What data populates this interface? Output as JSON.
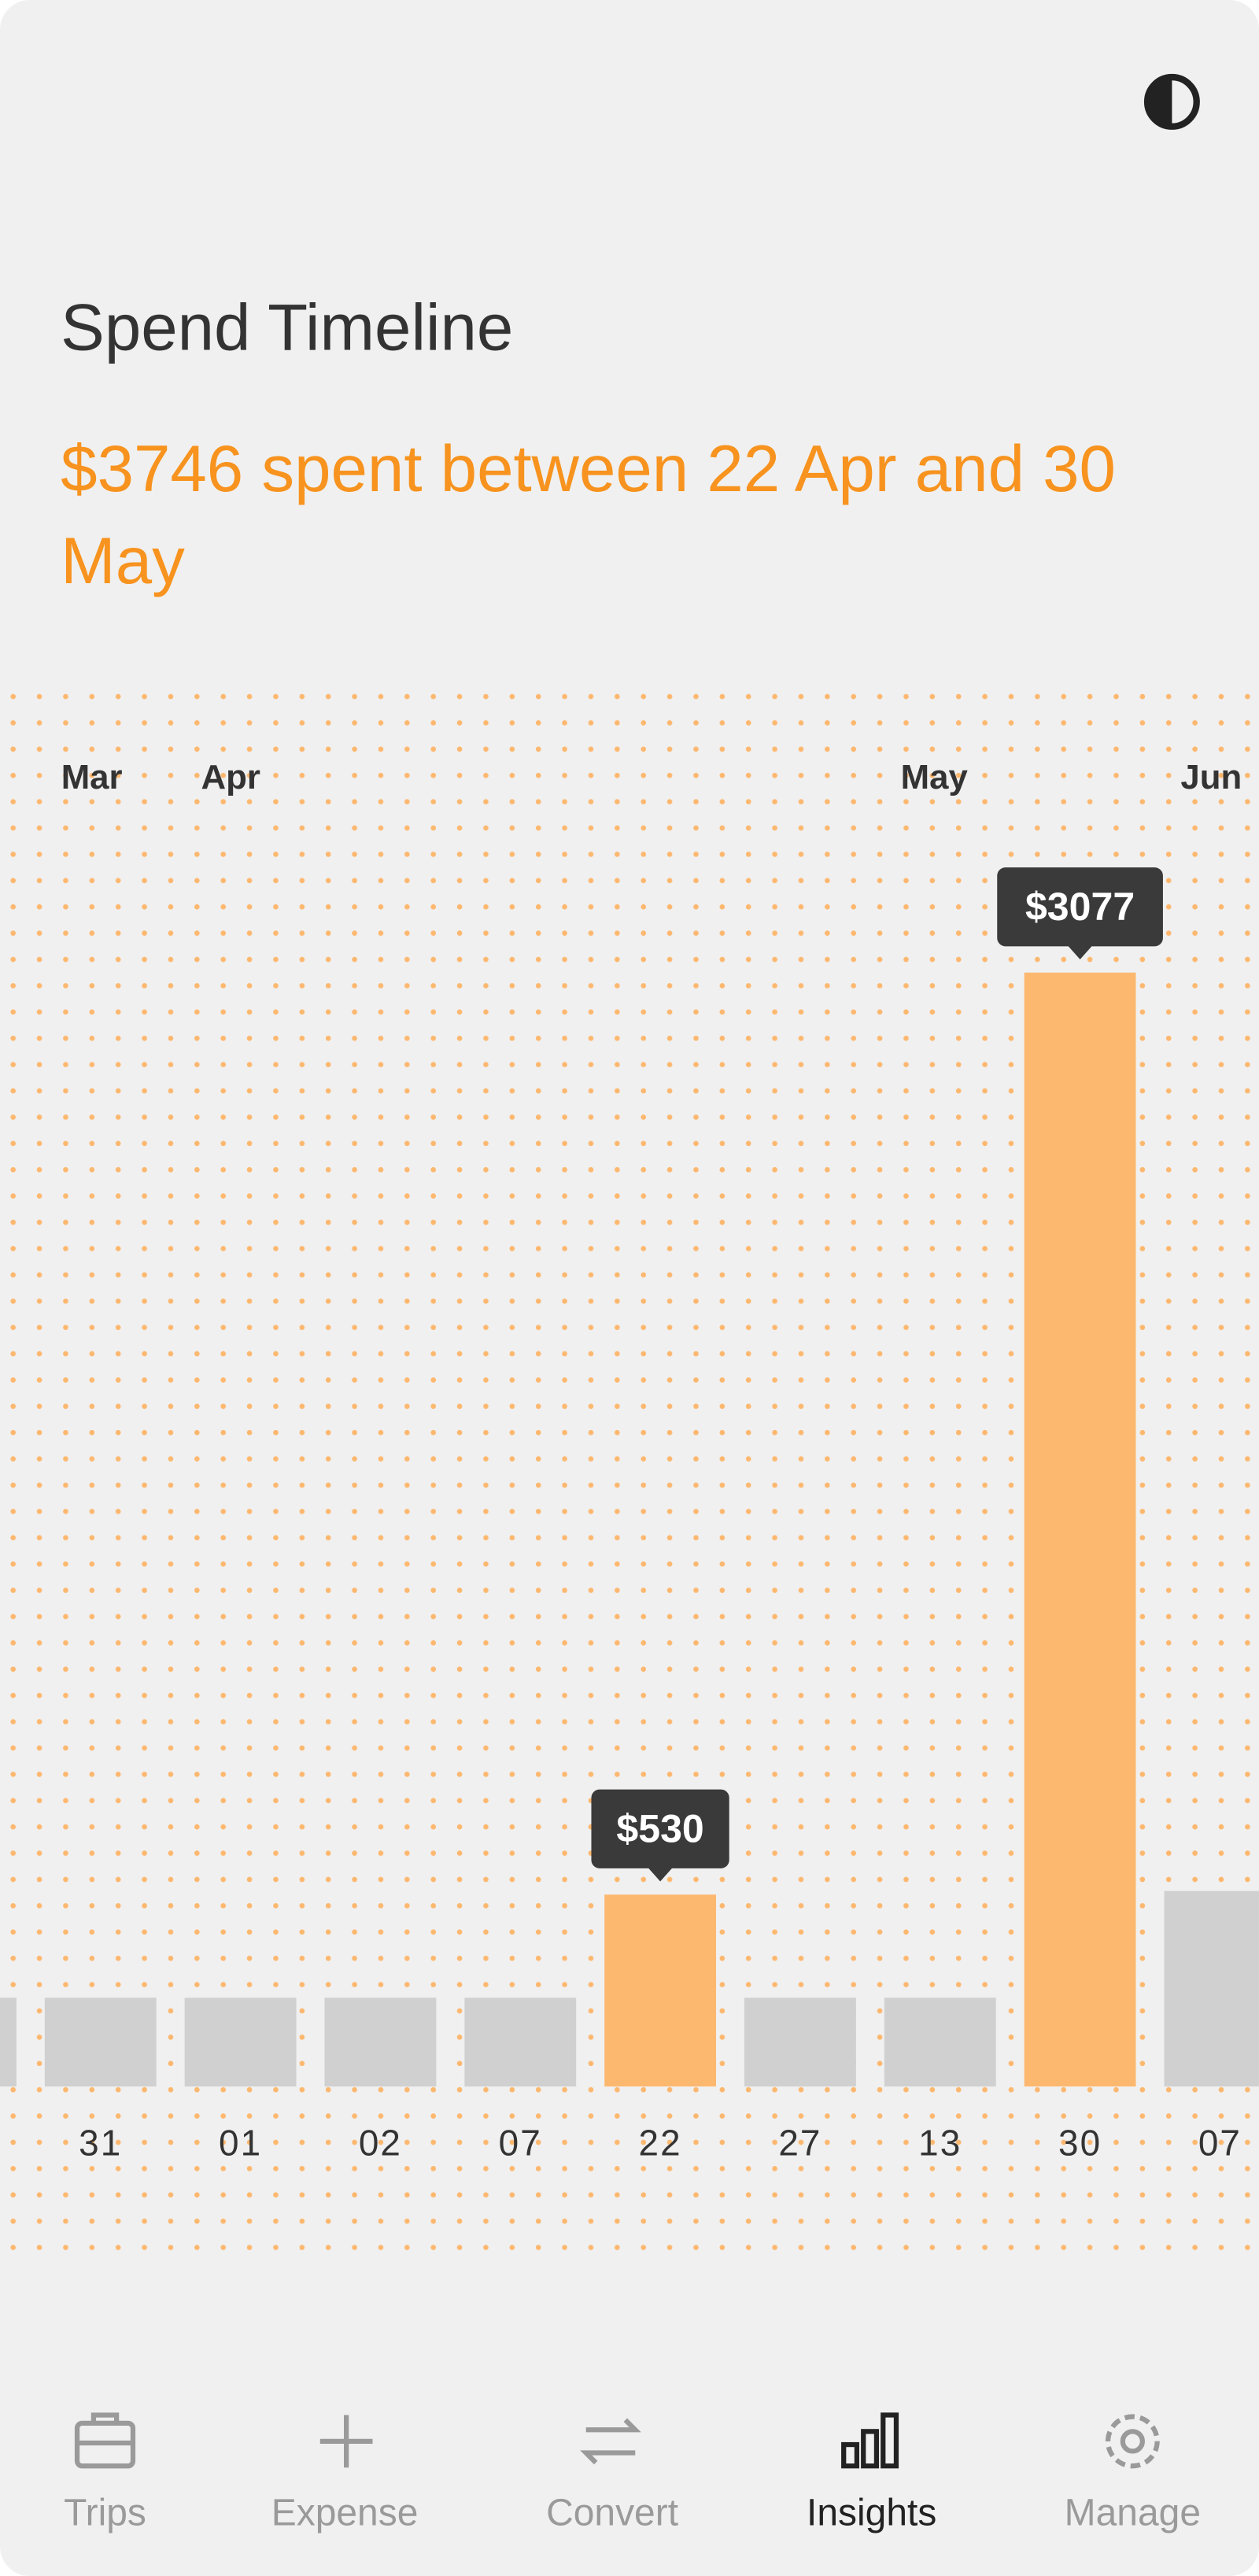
{
  "header": {
    "title": "Spend Timeline",
    "summary": "$3746 spent between 22 Apr and 30 May"
  },
  "chart_data": {
    "type": "bar",
    "categories": [
      null,
      "31",
      "01",
      "02",
      "07",
      "22",
      "27",
      "13",
      "30",
      "07"
    ],
    "month_labels": [
      null,
      "Mar",
      "Apr",
      null,
      null,
      null,
      null,
      "May",
      null,
      "Jun"
    ],
    "values": [
      245,
      245,
      245,
      245,
      245,
      530,
      245,
      245,
      3077,
      540
    ],
    "value_labels": [
      null,
      null,
      null,
      null,
      null,
      "$530",
      null,
      null,
      "$3077",
      null
    ],
    "colors": [
      "#d0d0d0",
      "#d0d0d0",
      "#d0d0d0",
      "#d0d0d0",
      "#d0d0d0",
      "#fdb870",
      "#d0d0d0",
      "#d0d0d0",
      "#fdb870",
      "#d0d0d0"
    ]
  },
  "nav": {
    "items": [
      "Trips",
      "Expense",
      "Convert",
      "Insights",
      "Manage"
    ],
    "active": "Insights"
  }
}
